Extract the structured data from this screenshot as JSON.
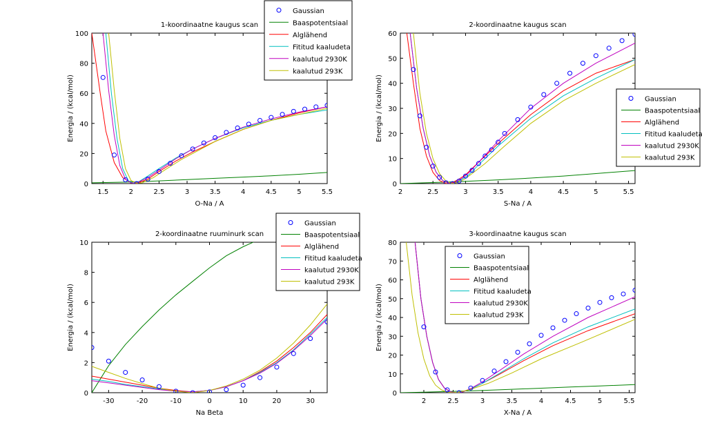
{
  "figure": {
    "series_styles": [
      {
        "name": "Gaussian",
        "color": "#0000ff",
        "marker": "circle"
      },
      {
        "name": "Baaspotentsiaal",
        "color": "#008000",
        "marker": "line"
      },
      {
        "name": "Alglähend",
        "color": "#ff0000",
        "marker": "line"
      },
      {
        "name": "Fititud kaaludeta",
        "color": "#00bfbf",
        "marker": "line"
      },
      {
        "name": "kaalutud 2930K",
        "color": "#bf00bf",
        "marker": "line"
      },
      {
        "name": "kaalutud 293K",
        "color": "#bfbf00",
        "marker": "line"
      }
    ]
  },
  "chart_data": [
    {
      "type": "line",
      "title": "1-koordinaatne kaugus scan",
      "xlabel": "O-Na / A",
      "ylabel": "Energia / (kcal/mol)",
      "xlim": [
        1.3,
        5.5
      ],
      "ylim": [
        0,
        100
      ],
      "xticks": [
        1.5,
        2,
        2.5,
        3,
        3.5,
        4,
        4.5,
        5,
        5.5
      ],
      "xtick_labels": [
        "1.5",
        "2",
        "2.5",
        "3",
        "3.5",
        "4",
        "4.5",
        "5",
        "5.5"
      ],
      "yticks": [
        0,
        20,
        40,
        60,
        80,
        100
      ],
      "ytick_labels": [
        "0",
        "20",
        "40",
        "60",
        "80",
        "100"
      ],
      "legend": {
        "placement": "top-right-outside",
        "entries": [
          "Gaussian",
          "Baaspotentsiaal",
          "Alglähend",
          "Fititud kaaludeta",
          "kaalutud 2930K",
          "kaalutud 293K"
        ]
      },
      "gaussian": {
        "x": [
          1.5,
          1.7,
          1.9,
          2.1,
          2.3,
          2.5,
          2.7,
          2.9,
          3.1,
          3.3,
          3.5,
          3.7,
          3.9,
          4.1,
          4.3,
          4.5,
          4.7,
          4.9,
          5.1,
          5.3,
          5.5
        ],
        "y": [
          70.5,
          19,
          2.5,
          0,
          3,
          8,
          13.5,
          18.5,
          23,
          27,
          30.5,
          34,
          37,
          39.5,
          42,
          44,
          46,
          48,
          49.5,
          51,
          52
        ]
      },
      "series": [
        {
          "name": "Baaspotentsiaal",
          "x": [
            1.3,
            2,
            2.5,
            3,
            3.5,
            4,
            4.5,
            5,
            5.5
          ],
          "y": [
            0.5,
            1,
            1.8,
            2.6,
            3.5,
            4.3,
            5.2,
            6.2,
            7.4
          ]
        },
        {
          "name": "Alglähend",
          "x": [
            1.3,
            1.45,
            1.55,
            1.7,
            1.85,
            2.0,
            2.1,
            2.3,
            2.5,
            2.8,
            3.1,
            3.5,
            4,
            4.5,
            5,
            5.5
          ],
          "y": [
            100,
            60,
            35,
            14,
            4,
            0.5,
            0,
            3,
            8,
            15,
            21,
            28,
            36,
            42,
            47,
            51
          ]
        },
        {
          "name": "Fititud kaaludeta",
          "x": [
            1.3,
            1.55,
            1.65,
            1.75,
            1.85,
            1.95,
            2.05,
            2.15,
            2.3,
            2.5,
            2.8,
            3.1,
            3.5,
            4,
            4.5,
            5,
            5.5
          ],
          "y": [
            140,
            100,
            60,
            30,
            10,
            2,
            0,
            1.5,
            5,
            10,
            17,
            23,
            30,
            37,
            42,
            46,
            49
          ]
        },
        {
          "name": "kaalutud 2930K",
          "x": [
            1.3,
            1.5,
            1.6,
            1.7,
            1.8,
            1.9,
            2.0,
            2.1,
            2.3,
            2.5,
            2.8,
            3.1,
            3.5,
            4,
            4.5,
            5,
            5.5
          ],
          "y": [
            150,
            100,
            62,
            32,
            12,
            3,
            0.3,
            0.5,
            4,
            9,
            16.5,
            23,
            30,
            37.5,
            43,
            47.5,
            51
          ]
        },
        {
          "name": "kaalutud 293K",
          "x": [
            1.3,
            1.6,
            1.7,
            1.8,
            1.9,
            2.0,
            2.1,
            2.2,
            2.4,
            2.6,
            2.9,
            3.2,
            3.5,
            4,
            4.5,
            5,
            5.5
          ],
          "y": [
            160,
            100,
            62,
            30,
            10,
            2,
            0.3,
            0.5,
            4,
            9,
            16,
            22,
            28,
            36,
            42,
            46,
            50
          ]
        }
      ]
    },
    {
      "type": "line",
      "title": "2-koordinaatne kaugus scan",
      "xlabel": "S-Na / A",
      "ylabel": "Energia / (kcal/mol)",
      "xlim": [
        2,
        5.6
      ],
      "ylim": [
        0,
        60
      ],
      "xticks": [
        2,
        2.5,
        3,
        3.5,
        4,
        4.5,
        5,
        5.5
      ],
      "xtick_labels": [
        "2",
        "2.5",
        "3",
        "3.5",
        "4",
        "4.5",
        "5",
        "5.5"
      ],
      "yticks": [
        0,
        10,
        20,
        30,
        40,
        50,
        60
      ],
      "ytick_labels": [
        "0",
        "10",
        "20",
        "30",
        "40",
        "50",
        "60"
      ],
      "legend": {
        "placement": "right-outside",
        "entries": [
          "Gaussian",
          "Baaspotentsiaal",
          "Alglähend",
          "Fititud kaaludeta",
          "kaalutud 2930K",
          "kaalutud 293K"
        ]
      },
      "gaussian": {
        "x": [
          2.2,
          2.3,
          2.4,
          2.5,
          2.6,
          2.7,
          2.8,
          2.9,
          3.0,
          3.1,
          3.2,
          3.3,
          3.4,
          3.5,
          3.6,
          3.8,
          4.0,
          4.2,
          4.4,
          4.6,
          4.8,
          5.0,
          5.2,
          5.4,
          5.6
        ],
        "y": [
          45.5,
          27,
          14.5,
          7,
          2.5,
          0.3,
          0,
          1,
          3,
          5.3,
          8,
          11,
          13.5,
          16.5,
          20,
          25.5,
          30.5,
          35.5,
          40,
          44,
          48,
          51,
          54,
          57,
          59.5
        ]
      },
      "series": [
        {
          "name": "Baaspotentsiaal",
          "x": [
            2,
            2.5,
            3,
            3.5,
            4,
            4.5,
            5,
            5.6
          ],
          "y": [
            0,
            0.4,
            0.9,
            1.5,
            2.2,
            3,
            4,
            5.2
          ]
        },
        {
          "name": "Alglähend",
          "x": [
            2.1,
            2.2,
            2.3,
            2.4,
            2.5,
            2.6,
            2.7,
            2.8,
            2.9,
            3.0,
            3.2,
            3.5,
            4,
            4.5,
            5,
            5.6
          ],
          "y": [
            60,
            40,
            22,
            11,
            4.5,
            1.2,
            0,
            0.4,
            1.8,
            3.5,
            8.5,
            16,
            27.5,
            37,
            44,
            49.5
          ]
        },
        {
          "name": "Fititud kaaludeta",
          "x": [
            2.15,
            2.25,
            2.35,
            2.45,
            2.55,
            2.65,
            2.75,
            2.85,
            2.95,
            3.05,
            3.2,
            3.5,
            4,
            4.5,
            5,
            5.6
          ],
          "y": [
            60,
            38,
            22,
            11,
            4.5,
            1.2,
            0,
            0.4,
            1.8,
            3.5,
            7.5,
            15,
            26,
            35,
            42,
            49.5
          ]
        },
        {
          "name": "kaalutud 2930K",
          "x": [
            2.15,
            2.25,
            2.35,
            2.45,
            2.55,
            2.65,
            2.75,
            2.85,
            2.95,
            3.05,
            3.2,
            3.5,
            4,
            4.5,
            5,
            5.6
          ],
          "y": [
            60,
            38,
            22,
            11,
            4.5,
            1.2,
            0,
            0.5,
            2.2,
            4.3,
            8.5,
            17,
            30,
            40,
            48,
            56
          ]
        },
        {
          "name": "kaalutud 293K",
          "x": [
            2.2,
            2.3,
            2.4,
            2.5,
            2.6,
            2.7,
            2.8,
            2.9,
            3.0,
            3.1,
            3.3,
            3.6,
            4,
            4.5,
            5,
            5.6
          ],
          "y": [
            60,
            36,
            20,
            10,
            4,
            1,
            0,
            0.6,
            2,
            4,
            8,
            15,
            24,
            33,
            40,
            47.5
          ]
        }
      ]
    },
    {
      "type": "line",
      "title": "2-koordinaatne ruuminurk scan",
      "xlabel": "Na Beta",
      "ylabel": "Energia / (kcal/mol)",
      "xlim": [
        -35,
        35
      ],
      "ylim": [
        0,
        10
      ],
      "xticks": [
        -30,
        -20,
        -10,
        0,
        10,
        20,
        30
      ],
      "xtick_labels": [
        "-30",
        "-20",
        "-10",
        "0",
        "10",
        "20",
        "30"
      ],
      "yticks": [
        0,
        2,
        4,
        6,
        8,
        10
      ],
      "ytick_labels": [
        "0",
        "2",
        "4",
        "6",
        "8",
        "10"
      ],
      "legend": {
        "placement": "top-right",
        "entries": [
          "Gaussian",
          "Baaspotentsiaal",
          "Alglähend",
          "Fititud kaaludeta",
          "kaalutud 2930K",
          "kaalutud 293K"
        ]
      },
      "gaussian": {
        "x": [
          -35,
          -30,
          -25,
          -20,
          -15,
          -10,
          -5,
          0,
          5,
          10,
          15,
          20,
          25,
          30,
          35
        ],
        "y": [
          3.0,
          2.1,
          1.35,
          0.85,
          0.4,
          0.1,
          0.0,
          0.05,
          0.2,
          0.5,
          1.0,
          1.7,
          2.6,
          3.6,
          4.7
        ]
      },
      "series": [
        {
          "name": "Baaspotentsiaal",
          "x": [
            -35,
            -30,
            -25,
            -20,
            -15,
            -10,
            -5,
            0,
            5,
            10,
            15
          ],
          "y": [
            0,
            1.8,
            3.2,
            4.4,
            5.5,
            6.5,
            7.4,
            8.3,
            9.1,
            9.7,
            10.2
          ]
        },
        {
          "name": "Alglähend",
          "x": [
            -35,
            -30,
            -25,
            -20,
            -15,
            -10,
            -5,
            0,
            5,
            10,
            15,
            20,
            25,
            30,
            35
          ],
          "y": [
            1.1,
            0.9,
            0.7,
            0.5,
            0.3,
            0.15,
            0.05,
            0.15,
            0.4,
            0.8,
            1.4,
            2.1,
            3.0,
            4.0,
            5.2
          ]
        },
        {
          "name": "Fititud kaaludeta",
          "x": [
            -35,
            -30,
            -25,
            -20,
            -15,
            -10,
            -5,
            0,
            5,
            10,
            15,
            20,
            25,
            30,
            35
          ],
          "y": [
            0.9,
            0.75,
            0.55,
            0.4,
            0.25,
            0.1,
            0.05,
            0.15,
            0.4,
            0.8,
            1.35,
            2.0,
            2.85,
            3.9,
            5.0
          ]
        },
        {
          "name": "kaalutud 2930K",
          "x": [
            -35,
            -30,
            -25,
            -20,
            -15,
            -10,
            -5,
            0,
            5,
            10,
            15,
            20,
            25,
            30,
            35
          ],
          "y": [
            0.8,
            0.65,
            0.5,
            0.35,
            0.2,
            0.1,
            0.05,
            0.15,
            0.4,
            0.8,
            1.3,
            1.95,
            2.8,
            3.8,
            4.9
          ]
        },
        {
          "name": "kaalutud 293K",
          "x": [
            -35,
            -30,
            -25,
            -20,
            -15,
            -10,
            -5,
            0,
            5,
            10,
            15,
            20,
            25,
            30,
            35
          ],
          "y": [
            1.75,
            1.35,
            0.95,
            0.6,
            0.3,
            0.1,
            0.0,
            0.15,
            0.45,
            0.9,
            1.5,
            2.3,
            3.3,
            4.5,
            5.9
          ]
        }
      ]
    },
    {
      "type": "line",
      "title": "3-koordinaatne kaugus scan",
      "xlabel": "X-Na / A",
      "ylabel": "Energia / (kcal/mol)",
      "xlim": [
        1.6,
        5.6
      ],
      "ylim": [
        0,
        80
      ],
      "xticks": [
        2,
        2.5,
        3,
        3.5,
        4,
        4.5,
        5,
        5.5
      ],
      "xtick_labels": [
        "2",
        "2.5",
        "3",
        "3.5",
        "4",
        "4.5",
        "5",
        "5.5"
      ],
      "yticks": [
        0,
        10,
        20,
        30,
        40,
        50,
        60,
        70,
        80
      ],
      "ytick_labels": [
        "0",
        "10",
        "20",
        "30",
        "40",
        "50",
        "60",
        "70",
        "80"
      ],
      "legend": {
        "placement": "top-left",
        "entries": [
          "Gaussian",
          "Baaspotentsiaal",
          "Alglähend",
          "Fititud kaaludeta",
          "kaalutud 2930K",
          "kaalutud 293K"
        ]
      },
      "gaussian": {
        "x": [
          2.0,
          2.2,
          2.4,
          2.6,
          2.8,
          3.0,
          3.2,
          3.4,
          3.6,
          3.8,
          4.0,
          4.2,
          4.4,
          4.6,
          4.8,
          5.0,
          5.2,
          5.4,
          5.6
        ],
        "y": [
          35,
          11,
          1.5,
          0,
          2.5,
          6.5,
          11.5,
          16.5,
          21.5,
          26,
          30.5,
          34.5,
          38.5,
          42,
          45,
          48,
          50.5,
          52.5,
          54.5
        ]
      },
      "series": [
        {
          "name": "Baaspotentsiaal",
          "x": [
            1.6,
            2,
            2.5,
            3,
            3.5,
            4,
            4.5,
            5,
            5.6
          ],
          "y": [
            0,
            0.3,
            0.7,
            1.2,
            1.8,
            2.4,
            3,
            3.6,
            4.3
          ]
        },
        {
          "name": "Alglähend",
          "x": [
            1.85,
            1.95,
            2.05,
            2.15,
            2.25,
            2.35,
            2.45,
            2.55,
            2.65,
            2.8,
            3.0,
            3.3,
            3.7,
            4.2,
            4.8,
            5.6
          ],
          "y": [
            80,
            50,
            30,
            16,
            7,
            2.5,
            0.5,
            0,
            0.3,
            2,
            5,
            10,
            17,
            25,
            33,
            42
          ]
        },
        {
          "name": "Fititud kaaludeta",
          "x": [
            1.85,
            1.95,
            2.05,
            2.15,
            2.25,
            2.35,
            2.45,
            2.55,
            2.65,
            2.8,
            3.0,
            3.3,
            3.7,
            4.2,
            4.8,
            5.6
          ],
          "y": [
            80,
            50,
            30,
            16,
            7,
            2.5,
            0.5,
            0,
            0.3,
            2,
            5,
            10.5,
            18,
            26.5,
            35,
            44.5
          ]
        },
        {
          "name": "kaalutud 2930K",
          "x": [
            1.85,
            1.95,
            2.05,
            2.15,
            2.25,
            2.35,
            2.45,
            2.55,
            2.65,
            2.8,
            3.0,
            3.3,
            3.7,
            4.2,
            4.8,
            5.6
          ],
          "y": [
            80,
            50,
            30,
            16,
            7,
            2.5,
            0.5,
            0,
            0.3,
            2.2,
            5.8,
            12,
            20.5,
            30,
            40,
            51
          ]
        },
        {
          "name": "kaalutud 293K",
          "x": [
            1.7,
            1.8,
            1.9,
            2.0,
            2.1,
            2.2,
            2.3,
            2.4,
            2.5,
            2.6,
            2.8,
            3.1,
            3.5,
            4.0,
            4.7,
            5.6
          ],
          "y": [
            80,
            52,
            32,
            18,
            9,
            4,
            1.5,
            0.3,
            0,
            0.3,
            1.8,
            5,
            10.5,
            18,
            27,
            39
          ]
        }
      ]
    }
  ]
}
